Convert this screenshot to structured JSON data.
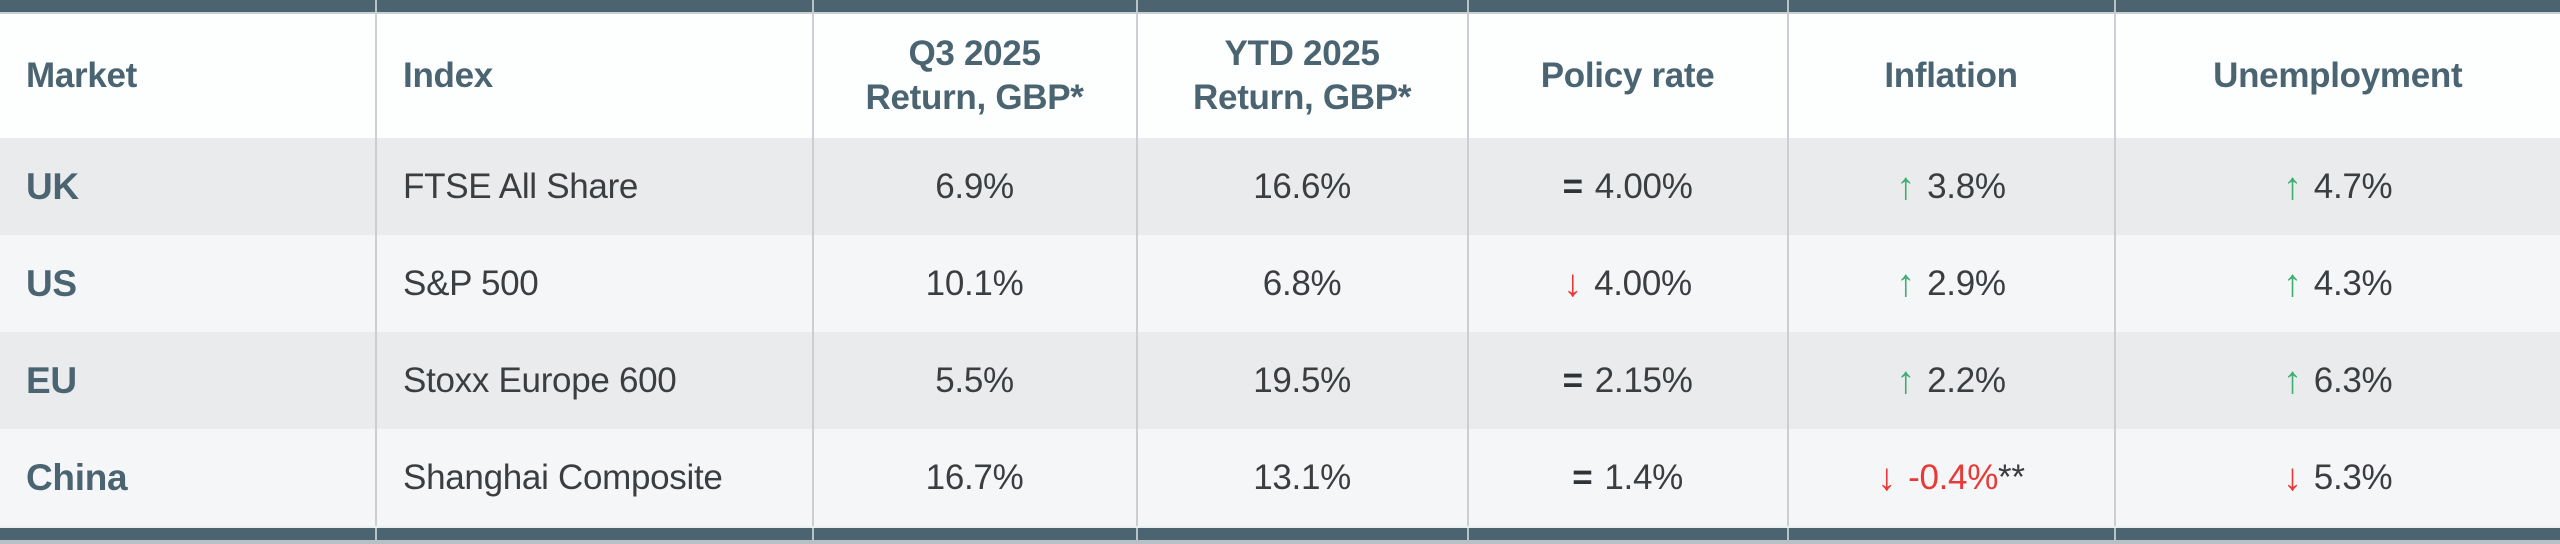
{
  "colors": {
    "bar": "#4C6370",
    "grid": "#C9CFD3",
    "header-bg": "#FDFEFE",
    "row-odd": "#E9EBEC",
    "row-even": "#F5F6F8",
    "header-text": "#4A6472",
    "body-text": "#3B3E41",
    "green": "#3FAE72",
    "red": "#E83936",
    "strip": "#B6C0C5"
  },
  "table": {
    "headers": [
      {
        "line1": "Market",
        "line2": ""
      },
      {
        "line1": "Index",
        "line2": ""
      },
      {
        "line1": "Q3 2025",
        "line2": "Return, GBP*"
      },
      {
        "line1": "YTD 2025",
        "line2": "Return, GBP*"
      },
      {
        "line1": "Policy rate",
        "line2": ""
      },
      {
        "line1": "Inflation",
        "line2": ""
      },
      {
        "line1": "Unemployment",
        "line2": ""
      }
    ],
    "rows": [
      {
        "market": "UK",
        "index": "FTSE All Share",
        "q3_return": "6.9%",
        "ytd_return": "16.6%",
        "policy": {
          "symbol": "=",
          "value": "4.00%",
          "direction": "flat"
        },
        "inflation": {
          "arrow": "↑",
          "value": "3.8%",
          "suffix": "",
          "direction": "up"
        },
        "unemployment": {
          "arrow": "↑",
          "value": "4.7%",
          "direction": "up"
        }
      },
      {
        "market": "US",
        "index": "S&P 500",
        "q3_return": "10.1%",
        "ytd_return": "6.8%",
        "policy": {
          "symbol": "↓",
          "value": "4.00%",
          "direction": "down"
        },
        "inflation": {
          "arrow": "↑",
          "value": "2.9%",
          "suffix": "",
          "direction": "up"
        },
        "unemployment": {
          "arrow": "↑",
          "value": "4.3%",
          "direction": "up"
        }
      },
      {
        "market": "EU",
        "index": "Stoxx Europe 600",
        "q3_return": "5.5%",
        "ytd_return": "19.5%",
        "policy": {
          "symbol": "=",
          "value": "2.15%",
          "direction": "flat"
        },
        "inflation": {
          "arrow": "↑",
          "value": "2.2%",
          "suffix": "",
          "direction": "up"
        },
        "unemployment": {
          "arrow": "↑",
          "value": "6.3%",
          "direction": "up"
        }
      },
      {
        "market": "China",
        "index": "Shanghai Composite",
        "q3_return": "16.7%",
        "ytd_return": "13.1%",
        "policy": {
          "symbol": "=",
          "value": "1.4%",
          "direction": "flat"
        },
        "inflation": {
          "arrow": "↓",
          "value": "-0.4%",
          "suffix": "**",
          "direction": "down"
        },
        "unemployment": {
          "arrow": "↓",
          "value": "5.3%",
          "direction": "down"
        }
      }
    ]
  },
  "chart_data": {
    "type": "table",
    "title": "",
    "columns": [
      "Market",
      "Index",
      "Q3 2025 Return, GBP*",
      "YTD 2025 Return, GBP*",
      "Policy rate",
      "Inflation",
      "Unemployment"
    ],
    "rows": [
      [
        "UK",
        "FTSE All Share",
        "6.9%",
        "16.6%",
        "= 4.00%",
        "↑ 3.8%",
        "↑ 4.7%"
      ],
      [
        "US",
        "S&P 500",
        "10.1%",
        "6.8%",
        "↓ 4.00%",
        "↑ 2.9%",
        "↑ 4.3%"
      ],
      [
        "EU",
        "Stoxx Europe 600",
        "5.5%",
        "19.5%",
        "= 2.15%",
        "↑ 2.2%",
        "↑ 6.3%"
      ],
      [
        "China",
        "Shanghai Composite",
        "16.7%",
        "13.1%",
        "= 1.4%",
        "↓ -0.4%**",
        "↓ 5.3%"
      ]
    ]
  }
}
